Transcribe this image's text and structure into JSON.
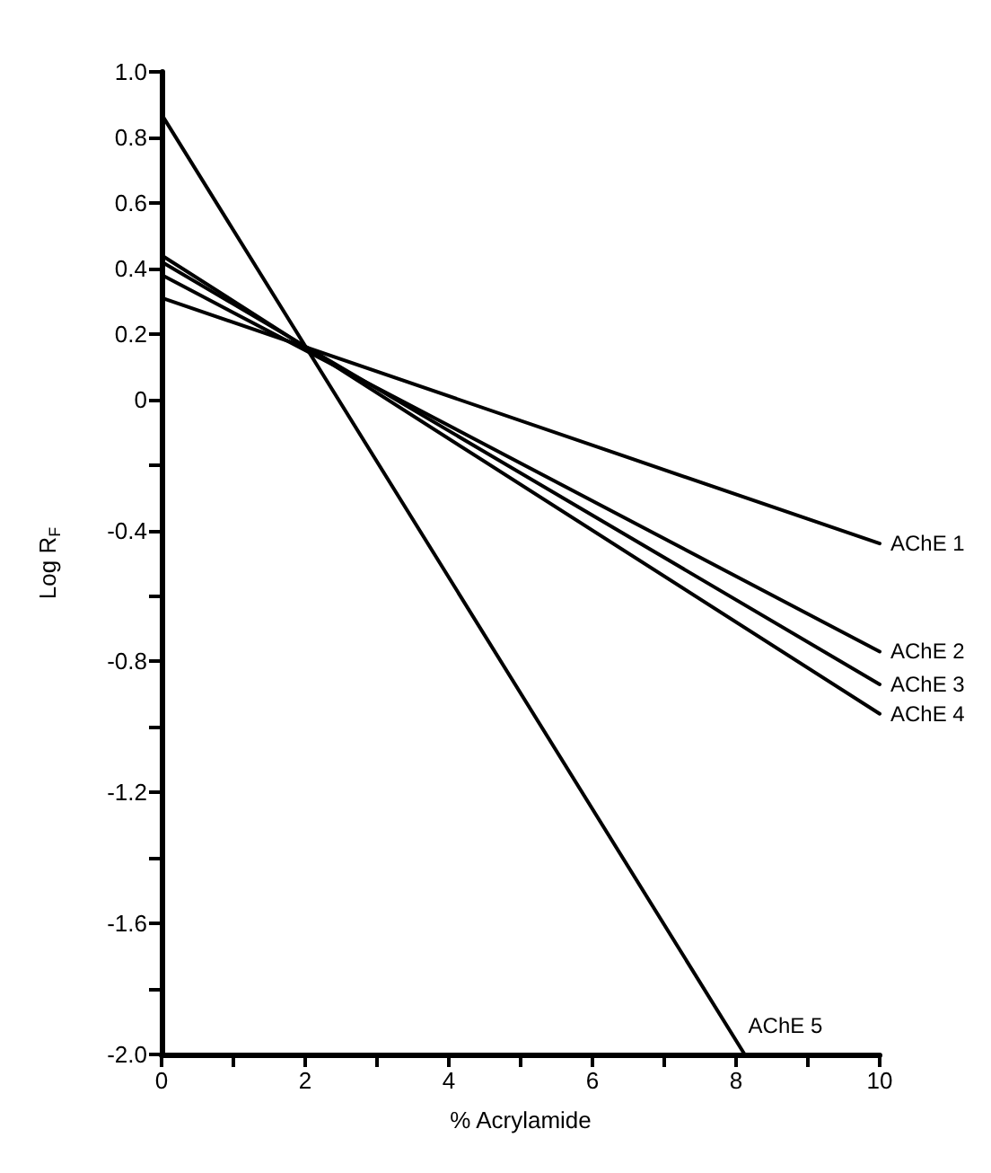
{
  "chart_data": {
    "type": "line",
    "xlabel": "% Acrylamide",
    "ylabel": "Log R$_{F}$",
    "xlim": [
      0,
      10
    ],
    "xticks": [
      0,
      {
        "value": 1,
        "label": null
      },
      2,
      {
        "value": 3,
        "label": null
      },
      4,
      {
        "value": 5,
        "label": null
      },
      6,
      {
        "value": 7,
        "label": null
      },
      8,
      {
        "value": 9,
        "label": null
      },
      10
    ],
    "ylim": [
      -2.0,
      1.0
    ],
    "yticks": [
      {
        "value": -2.0,
        "label": "-2.0"
      },
      {
        "value": -1.8,
        "label": null
      },
      -1.6,
      {
        "value": -1.4,
        "label": null
      },
      -1.2,
      {
        "value": -1.0,
        "label": null
      },
      -0.8,
      {
        "value": -0.6,
        "label": null
      },
      -0.4,
      {
        "value": -0.2,
        "label": null
      },
      0,
      0.2,
      0.4,
      0.6,
      0.8,
      {
        "value": 1.0,
        "label": "1.0"
      }
    ],
    "grid": false,
    "legend": false,
    "marker": "none",
    "line_style": "solid",
    "series": [
      {
        "name": "AChE 1",
        "color": "#000000",
        "x": [
          0,
          10
        ],
        "values": [
          0.31,
          -0.44
        ]
      },
      {
        "name": "AChE 2",
        "color": "#000000",
        "x": [
          0,
          10
        ],
        "values": [
          0.38,
          -0.77
        ]
      },
      {
        "name": "AChE 3",
        "color": "#000000",
        "x": [
          0,
          10
        ],
        "values": [
          0.42,
          -0.87
        ]
      },
      {
        "name": "AChE 4",
        "color": "#000000",
        "x": [
          0,
          10
        ],
        "values": [
          0.44,
          -0.96
        ]
      },
      {
        "name": "AChE 5",
        "color": "#000000",
        "x": [
          0,
          8.12
        ],
        "values": [
          0.87,
          -2.0
        ]
      }
    ]
  }
}
